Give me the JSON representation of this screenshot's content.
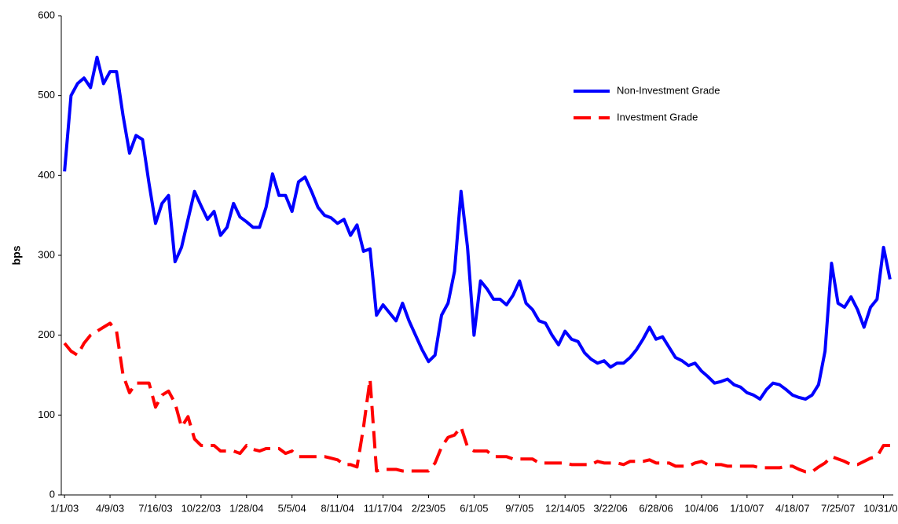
{
  "chart_data": {
    "type": "line",
    "ylabel": "bps",
    "ylim": [
      0,
      600
    ],
    "yticks": [
      0,
      100,
      200,
      300,
      400,
      500,
      600
    ],
    "legend": "upper right",
    "categories": [
      "1/1/03",
      null,
      null,
      null,
      null,
      null,
      null,
      "4/9/03",
      null,
      null,
      null,
      null,
      null,
      null,
      "7/16/03",
      null,
      null,
      null,
      null,
      null,
      null,
      "10/22/03",
      null,
      null,
      null,
      null,
      null,
      null,
      "1/28/04",
      null,
      null,
      null,
      null,
      null,
      null,
      "5/5/04",
      null,
      null,
      null,
      null,
      null,
      null,
      "8/11/04",
      null,
      null,
      null,
      null,
      null,
      null,
      "11/17/04",
      null,
      null,
      null,
      null,
      null,
      null,
      "2/23/05",
      null,
      null,
      null,
      null,
      null,
      null,
      "6/1/05",
      null,
      null,
      null,
      null,
      null,
      null,
      "9/7/05",
      null,
      null,
      null,
      null,
      null,
      null,
      "12/14/05",
      null,
      null,
      null,
      null,
      null,
      null,
      "3/22/06",
      null,
      null,
      null,
      null,
      null,
      null,
      "6/28/06",
      null,
      null,
      null,
      null,
      null,
      null,
      "10/4/06",
      null,
      null,
      null,
      null,
      null,
      null,
      "1/10/07",
      null,
      null,
      null,
      null,
      null,
      null,
      "4/18/07",
      null,
      null,
      null,
      null,
      null,
      null,
      "7/25/07",
      null,
      null,
      null,
      null,
      null,
      null,
      "10/31/07",
      null
    ],
    "series": [
      {
        "name": "Non-Investment Grade",
        "color": "#0000ff",
        "dashed": false,
        "values": [
          405,
          500,
          515,
          522,
          510,
          548,
          515,
          530,
          530,
          475,
          428,
          450,
          445,
          390,
          340,
          365,
          375,
          292,
          310,
          345,
          380,
          362,
          345,
          355,
          325,
          335,
          365,
          348,
          342,
          335,
          335,
          360,
          402,
          375,
          375,
          355,
          392,
          398,
          380,
          360,
          350,
          347,
          340,
          345,
          325,
          338,
          305,
          308,
          225,
          238,
          228,
          218,
          240,
          218,
          200,
          182,
          167,
          175,
          225,
          240,
          280,
          380,
          310,
          200,
          268,
          258,
          245,
          245,
          238,
          250,
          268,
          240,
          232,
          218,
          215,
          200,
          188,
          205,
          195,
          192,
          178,
          170,
          165,
          168,
          160,
          165,
          165,
          172,
          182,
          195,
          210,
          195,
          198,
          185,
          172,
          168,
          162,
          165,
          155,
          148,
          140,
          142,
          145,
          138,
          135,
          128,
          125,
          120,
          132,
          140,
          138,
          132,
          125,
          122,
          120,
          125,
          138,
          180,
          290,
          240,
          235,
          248,
          232,
          210,
          235,
          245,
          310,
          270
        ]
      },
      {
        "name": "Investment Grade",
        "color": "#ff0000",
        "dashed": true,
        "values": [
          190,
          180,
          175,
          190,
          200,
          205,
          210,
          215,
          205,
          150,
          128,
          140,
          140,
          140,
          110,
          125,
          130,
          115,
          85,
          98,
          70,
          62,
          62,
          62,
          55,
          55,
          55,
          52,
          62,
          57,
          55,
          58,
          58,
          58,
          52,
          55,
          48,
          48,
          48,
          48,
          48,
          46,
          44,
          38,
          38,
          35,
          85,
          145,
          30,
          32,
          32,
          32,
          30,
          30,
          30,
          30,
          30,
          40,
          60,
          72,
          75,
          85,
          60,
          55,
          55,
          55,
          48,
          48,
          48,
          45,
          45,
          45,
          45,
          40,
          40,
          40,
          40,
          40,
          38,
          38,
          38,
          38,
          42,
          40,
          40,
          40,
          38,
          42,
          42,
          42,
          44,
          40,
          40,
          40,
          36,
          36,
          36,
          40,
          42,
          38,
          38,
          38,
          36,
          36,
          36,
          36,
          36,
          34,
          34,
          34,
          34,
          36,
          36,
          32,
          29,
          29,
          35,
          40,
          48,
          45,
          42,
          38,
          38,
          42,
          46,
          48,
          62,
          62
        ]
      }
    ]
  }
}
